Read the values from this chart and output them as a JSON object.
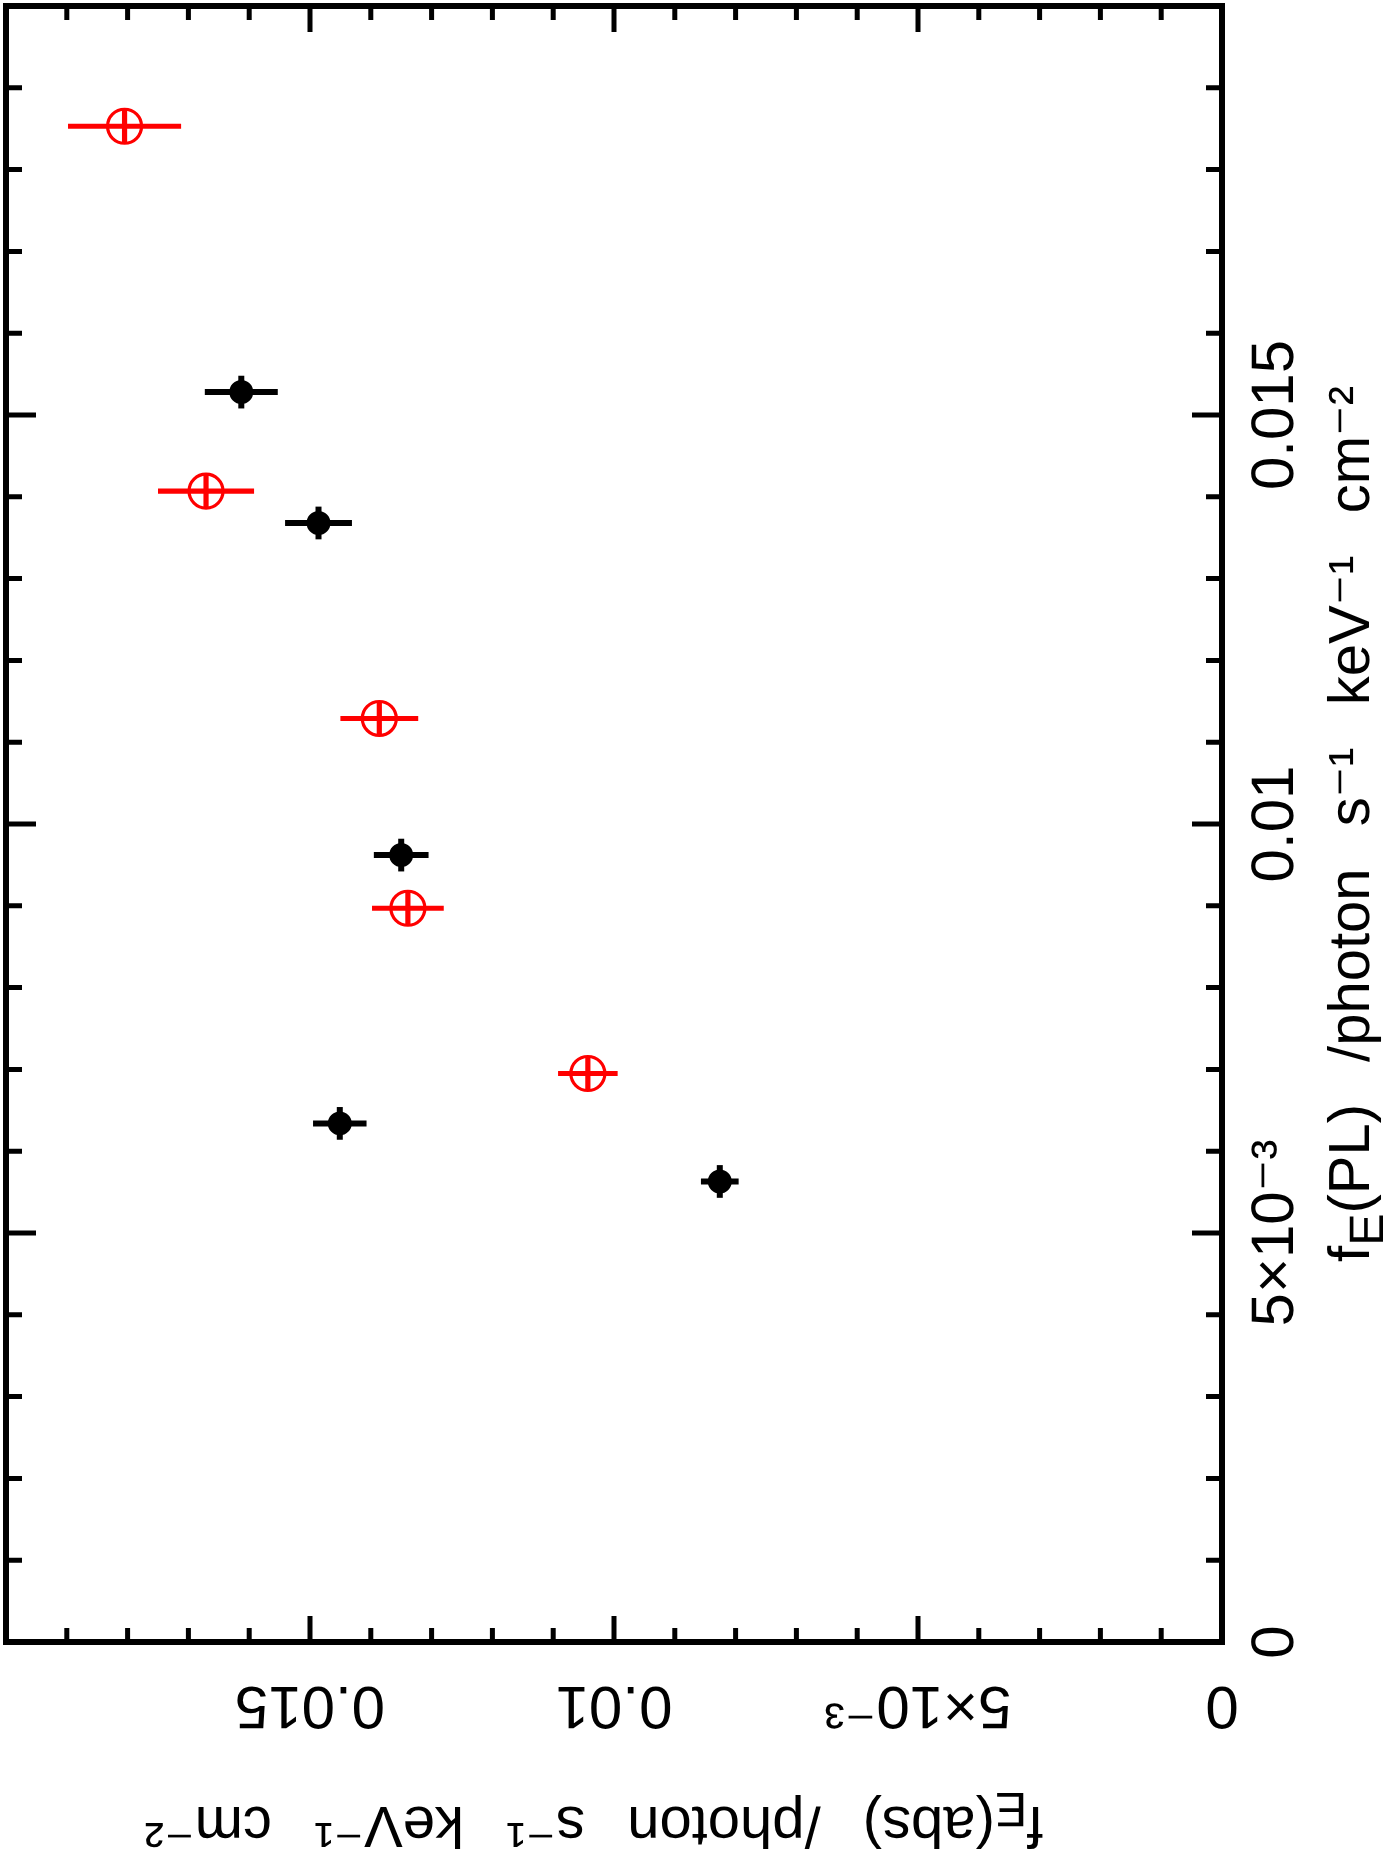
{
  "chart_data": {
    "type": "scatter",
    "xlabel": "f$_{E}$(abs) /photon s⁻¹ keV⁻¹ cm⁻²",
    "ylabel": "f$_{E}$(PL) /photon s⁻¹ keV⁻¹ cm⁻²",
    "xlim": [
      0.02,
      0
    ],
    "ylim": [
      0,
      0.02
    ],
    "xticks": [
      0,
      {
        "value": 0.001,
        "label": null
      },
      {
        "value": 0.002,
        "label": null
      },
      {
        "value": 0.003,
        "label": null
      },
      {
        "value": 0.004,
        "label": null
      },
      {
        "value": 0.005,
        "label": "5×10⁻³"
      },
      {
        "value": 0.006,
        "label": null
      },
      {
        "value": 0.007,
        "label": null
      },
      {
        "value": 0.008,
        "label": null
      },
      {
        "value": 0.009,
        "label": null
      },
      0.01,
      {
        "value": 0.011,
        "label": null
      },
      {
        "value": 0.012,
        "label": null
      },
      {
        "value": 0.013,
        "label": null
      },
      {
        "value": 0.014,
        "label": null
      },
      0.015,
      {
        "value": 0.016,
        "label": null
      },
      {
        "value": 0.017,
        "label": null
      },
      {
        "value": 0.018,
        "label": null
      },
      {
        "value": 0.019,
        "label": null
      }
    ],
    "yticks": [
      0,
      {
        "value": 0.001,
        "label": null
      },
      {
        "value": 0.002,
        "label": null
      },
      {
        "value": 0.003,
        "label": null
      },
      {
        "value": 0.004,
        "label": null
      },
      {
        "value": 0.005,
        "label": "5×10⁻³"
      },
      {
        "value": 0.006,
        "label": null
      },
      {
        "value": 0.007,
        "label": null
      },
      {
        "value": 0.008,
        "label": null
      },
      {
        "value": 0.009,
        "label": null
      },
      0.01,
      {
        "value": 0.011,
        "label": null
      },
      {
        "value": 0.012,
        "label": null
      },
      {
        "value": 0.013,
        "label": null
      },
      {
        "value": 0.014,
        "label": null
      },
      0.015,
      {
        "value": 0.016,
        "label": null
      },
      {
        "value": 0.017,
        "label": null
      },
      {
        "value": 0.018,
        "label": null
      },
      {
        "value": 0.019,
        "label": null
      }
    ],
    "grid": false,
    "legend": false,
    "marker": "circle",
    "series": [
      {
        "color": "#000000",
        "x": [
          0.01613,
          0.01486,
          0.0135,
          0.01451,
          0.00826
        ],
        "values": [
          0.01528,
          0.01368,
          0.00962,
          0.00634,
          0.00563
        ],
        "xerrors": [
          0.0006,
          0.00055,
          0.00045,
          0.00044,
          0.00031
        ],
        "errors": [
          0.0002,
          0.0002,
          0.0002,
          0.0002,
          0.0002
        ]
      },
      {
        "color": "#ff0000",
        "x": [
          0.01805,
          0.01671,
          0.01386,
          0.01339,
          0.01043
        ],
        "values": [
          0.01853,
          0.01407,
          0.01129,
          0.00897,
          0.00695
        ],
        "xerrors": [
          0.00093,
          0.00079,
          0.00064,
          0.00059,
          0.00049
        ],
        "errors": [
          0.0002,
          0.0002,
          0.0002,
          0.0002,
          0.0002
        ]
      }
    ]
  }
}
